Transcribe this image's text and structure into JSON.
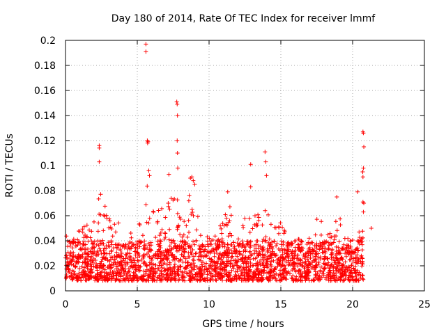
{
  "chart_data": {
    "type": "scatter",
    "title": "Day 180 of 2014, Rate Of TEC Index for receiver lmmf",
    "xlabel": "GPS time / hours",
    "ylabel": "ROTI / TECUs",
    "xlim": [
      0,
      25
    ],
    "ylim": [
      0,
      0.2
    ],
    "x_ticks": [
      0,
      5,
      10,
      15,
      20,
      25
    ],
    "y_ticks": [
      0,
      0.02,
      0.04,
      0.06,
      0.08,
      0.1,
      0.12,
      0.14,
      0.16,
      0.18,
      0.2
    ],
    "x_tick_labels": [
      "0",
      "5",
      "10",
      "15",
      "20",
      "25"
    ],
    "y_tick_labels": [
      "0",
      "0.02",
      "0.04",
      "0.06",
      "0.08",
      "0.1",
      "0.12",
      "0.14",
      "0.16",
      "0.18",
      "0.2"
    ],
    "grid": true,
    "marker": "plus",
    "color": "#ff0000",
    "series": [
      {
        "name": "ROTI",
        "x_range": [
          0,
          20.75
        ],
        "base_band": [
          0.008,
          0.04
        ],
        "envelope": [
          [
            0.0,
            0.045
          ],
          [
            0.5,
            0.04
          ],
          [
            1.0,
            0.05
          ],
          [
            1.5,
            0.055
          ],
          [
            2.0,
            0.065
          ],
          [
            2.5,
            0.08
          ],
          [
            3.0,
            0.06
          ],
          [
            3.5,
            0.055
          ],
          [
            4.0,
            0.065
          ],
          [
            4.5,
            0.05
          ],
          [
            5.0,
            0.048
          ],
          [
            5.5,
            0.07
          ],
          [
            5.8,
            0.1
          ],
          [
            6.2,
            0.06
          ],
          [
            6.5,
            0.065
          ],
          [
            7.0,
            0.07
          ],
          [
            7.5,
            0.09
          ],
          [
            7.8,
            0.075
          ],
          [
            8.2,
            0.06
          ],
          [
            8.5,
            0.08
          ],
          [
            9.0,
            0.09
          ],
          [
            9.5,
            0.04
          ],
          [
            10.0,
            0.045
          ],
          [
            10.5,
            0.05
          ],
          [
            11.0,
            0.06
          ],
          [
            11.3,
            0.08
          ],
          [
            11.8,
            0.045
          ],
          [
            12.2,
            0.05
          ],
          [
            12.5,
            0.06
          ],
          [
            13.0,
            0.065
          ],
          [
            13.5,
            0.06
          ],
          [
            14.0,
            0.065
          ],
          [
            14.5,
            0.05
          ],
          [
            15.0,
            0.055
          ],
          [
            15.5,
            0.045
          ],
          [
            16.0,
            0.045
          ],
          [
            16.5,
            0.05
          ],
          [
            17.0,
            0.045
          ],
          [
            17.5,
            0.06
          ],
          [
            18.0,
            0.055
          ],
          [
            18.5,
            0.045
          ],
          [
            19.0,
            0.062
          ],
          [
            19.5,
            0.045
          ],
          [
            20.0,
            0.045
          ],
          [
            20.5,
            0.05
          ],
          [
            20.75,
            0.05
          ]
        ],
        "spikes": [
          [
            2.35,
            0.116
          ],
          [
            2.35,
            0.114
          ],
          [
            2.35,
            0.103
          ],
          [
            5.6,
            0.197
          ],
          [
            5.6,
            0.191
          ],
          [
            5.7,
            0.12
          ],
          [
            5.72,
            0.118
          ],
          [
            5.75,
            0.119
          ],
          [
            5.8,
            0.096
          ],
          [
            5.85,
            0.092
          ],
          [
            7.75,
            0.151
          ],
          [
            7.78,
            0.149
          ],
          [
            7.8,
            0.14
          ],
          [
            7.78,
            0.12
          ],
          [
            7.8,
            0.11
          ],
          [
            7.82,
            0.098
          ],
          [
            7.2,
            0.093
          ],
          [
            8.7,
            0.09
          ],
          [
            8.8,
            0.091
          ],
          [
            8.9,
            0.088
          ],
          [
            9.0,
            0.085
          ],
          [
            11.3,
            0.079
          ],
          [
            12.9,
            0.101
          ],
          [
            12.9,
            0.083
          ],
          [
            13.9,
            0.111
          ],
          [
            13.95,
            0.103
          ],
          [
            14.0,
            0.092
          ],
          [
            18.9,
            0.075
          ],
          [
            20.35,
            0.079
          ],
          [
            20.72,
            0.127
          ],
          [
            20.75,
            0.126
          ],
          [
            20.78,
            0.115
          ],
          [
            20.75,
            0.098
          ],
          [
            20.7,
            0.095
          ],
          [
            20.72,
            0.091
          ],
          [
            20.72,
            0.071
          ],
          [
            20.78,
            0.07
          ],
          [
            20.75,
            0.063
          ],
          [
            21.3,
            0.05
          ]
        ]
      }
    ]
  }
}
